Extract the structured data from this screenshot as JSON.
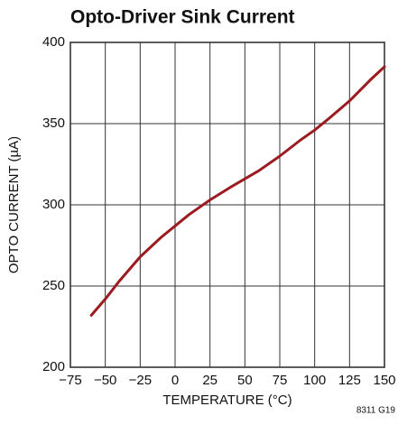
{
  "chart_data": {
    "type": "line",
    "title": "Opto-Driver Sink Current",
    "x_label": "TEMPERATURE (°C)",
    "y_label": "OPTO CURRENT (µA)",
    "annotation": "8311 G19",
    "x": [
      -60,
      -50,
      -40,
      -25,
      -10,
      0,
      10,
      25,
      40,
      50,
      60,
      75,
      90,
      100,
      110,
      125,
      140,
      150
    ],
    "series": [
      {
        "name": "Opto current",
        "color": "#9b1b20",
        "values": [
          232,
          242,
          253,
          268,
          280,
          287,
          294,
          303,
          311,
          316,
          321,
          330,
          340,
          346,
          353,
          364,
          377,
          385
        ]
      }
    ],
    "xlim": [
      -75,
      150
    ],
    "xticks": [
      {
        "value": -75,
        "label": "−75"
      },
      {
        "value": -50,
        "label": "−50"
      },
      {
        "value": -25,
        "label": "−25"
      },
      0,
      25,
      50,
      75,
      100,
      125,
      150
    ],
    "ylim": [
      200,
      400
    ],
    "yticks": [
      200,
      250,
      300,
      350,
      400
    ],
    "grid": true
  }
}
